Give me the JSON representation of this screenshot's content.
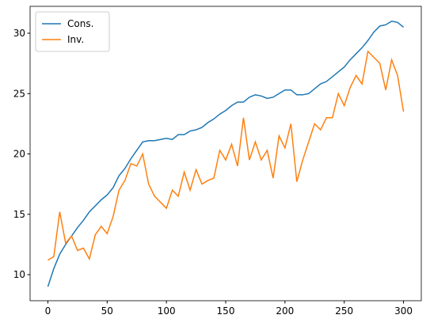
{
  "chart_data": {
    "type": "line",
    "x": [
      0,
      5,
      10,
      15,
      20,
      25,
      30,
      35,
      40,
      45,
      50,
      55,
      60,
      65,
      70,
      75,
      80,
      85,
      90,
      95,
      100,
      105,
      110,
      115,
      120,
      125,
      130,
      135,
      140,
      145,
      150,
      155,
      160,
      165,
      170,
      175,
      180,
      185,
      190,
      195,
      200,
      205,
      210,
      215,
      220,
      225,
      230,
      235,
      240,
      245,
      250,
      255,
      260,
      265,
      270,
      275,
      280,
      285,
      290,
      295,
      300
    ],
    "series": [
      {
        "name": "Cons.",
        "color": "#1f77b4",
        "values": [
          9.0,
          10.5,
          11.7,
          12.5,
          13.2,
          13.9,
          14.5,
          15.2,
          15.7,
          16.2,
          16.6,
          17.2,
          18.2,
          18.8,
          19.6,
          20.3,
          21.0,
          21.1,
          21.1,
          21.2,
          21.3,
          21.2,
          21.6,
          21.6,
          21.9,
          22.0,
          22.2,
          22.6,
          22.9,
          23.3,
          23.6,
          24.0,
          24.3,
          24.3,
          24.7,
          24.9,
          24.8,
          24.6,
          24.7,
          25.0,
          25.3,
          25.3,
          24.9,
          24.9,
          25.0,
          25.4,
          25.8,
          26.0,
          26.4,
          26.8,
          27.2,
          27.8,
          28.3,
          28.8,
          29.4,
          30.1,
          30.6,
          30.7,
          31.0,
          30.9,
          30.5
        ]
      },
      {
        "name": "Inv.",
        "color": "#ff7f0e",
        "values": [
          11.2,
          11.5,
          15.2,
          12.6,
          13.2,
          12.0,
          12.2,
          11.3,
          13.3,
          14.0,
          13.4,
          14.8,
          17.0,
          17.8,
          19.2,
          19.0,
          20.0,
          17.5,
          16.5,
          16.0,
          15.5,
          17.0,
          16.5,
          18.5,
          17.0,
          18.7,
          17.5,
          17.8,
          18.0,
          20.3,
          19.5,
          20.8,
          19.0,
          23.0,
          19.5,
          21.0,
          19.5,
          20.3,
          18.0,
          21.5,
          20.5,
          22.5,
          17.7,
          19.5,
          21.0,
          22.5,
          22.0,
          23.0,
          23.0,
          25.0,
          24.0,
          25.5,
          26.5,
          25.8,
          28.5,
          28.0,
          27.5,
          25.3,
          27.8,
          26.5,
          23.5
        ]
      }
    ],
    "xlim": [
      -15,
      315
    ],
    "xticks": [
      0,
      50,
      100,
      150,
      200,
      250,
      300
    ],
    "ylim": [
      7.84,
      32.23
    ],
    "yticks": [
      10,
      15,
      20,
      25,
      30
    ],
    "legend": "upper left"
  }
}
